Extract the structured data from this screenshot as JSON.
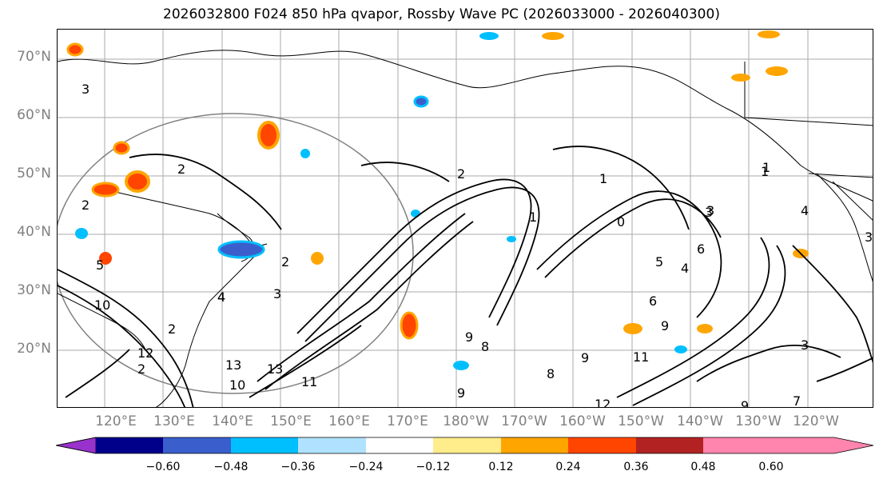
{
  "title": "2026032800 F024 850 hPa qvapor, Rossby Wave PC (2026033000 - 2026040300)",
  "latitudes": [
    "70°N",
    "60°N",
    "50°N",
    "40°N",
    "30°N",
    "20°N"
  ],
  "longitudes": [
    "120°E",
    "130°E",
    "140°E",
    "150°E",
    "160°E",
    "170°E",
    "180°W",
    "170°W",
    "160°W",
    "150°W",
    "140°W",
    "130°W",
    "120°W"
  ],
  "colorbar": {
    "colors": [
      "#9932cc",
      "#00008b",
      "#3a5fcd",
      "#00bfff",
      "#b0e2ff",
      "#ffffff",
      "#ffec8b",
      "#ffa500",
      "#ff4500",
      "#b22222",
      "#ff85ae"
    ],
    "ticks": [
      "−0.60",
      "−0.48",
      "−0.36",
      "−0.24",
      "−0.12",
      "0.12",
      "0.24",
      "0.36",
      "0.48",
      "0.60"
    ]
  },
  "contour_labels": [
    "2",
    "3",
    "2",
    "1",
    "1",
    "0",
    "1",
    "2",
    "3",
    "4",
    "5",
    "4",
    "5",
    "4",
    "3",
    "2",
    "10",
    "12",
    "13",
    "13",
    "11",
    "10",
    "9",
    "8",
    "9",
    "6",
    "9",
    "8",
    "12",
    "11",
    "9",
    "4",
    "2",
    "3",
    "3",
    "1",
    "6",
    "7",
    "3",
    "2",
    "9"
  ]
}
